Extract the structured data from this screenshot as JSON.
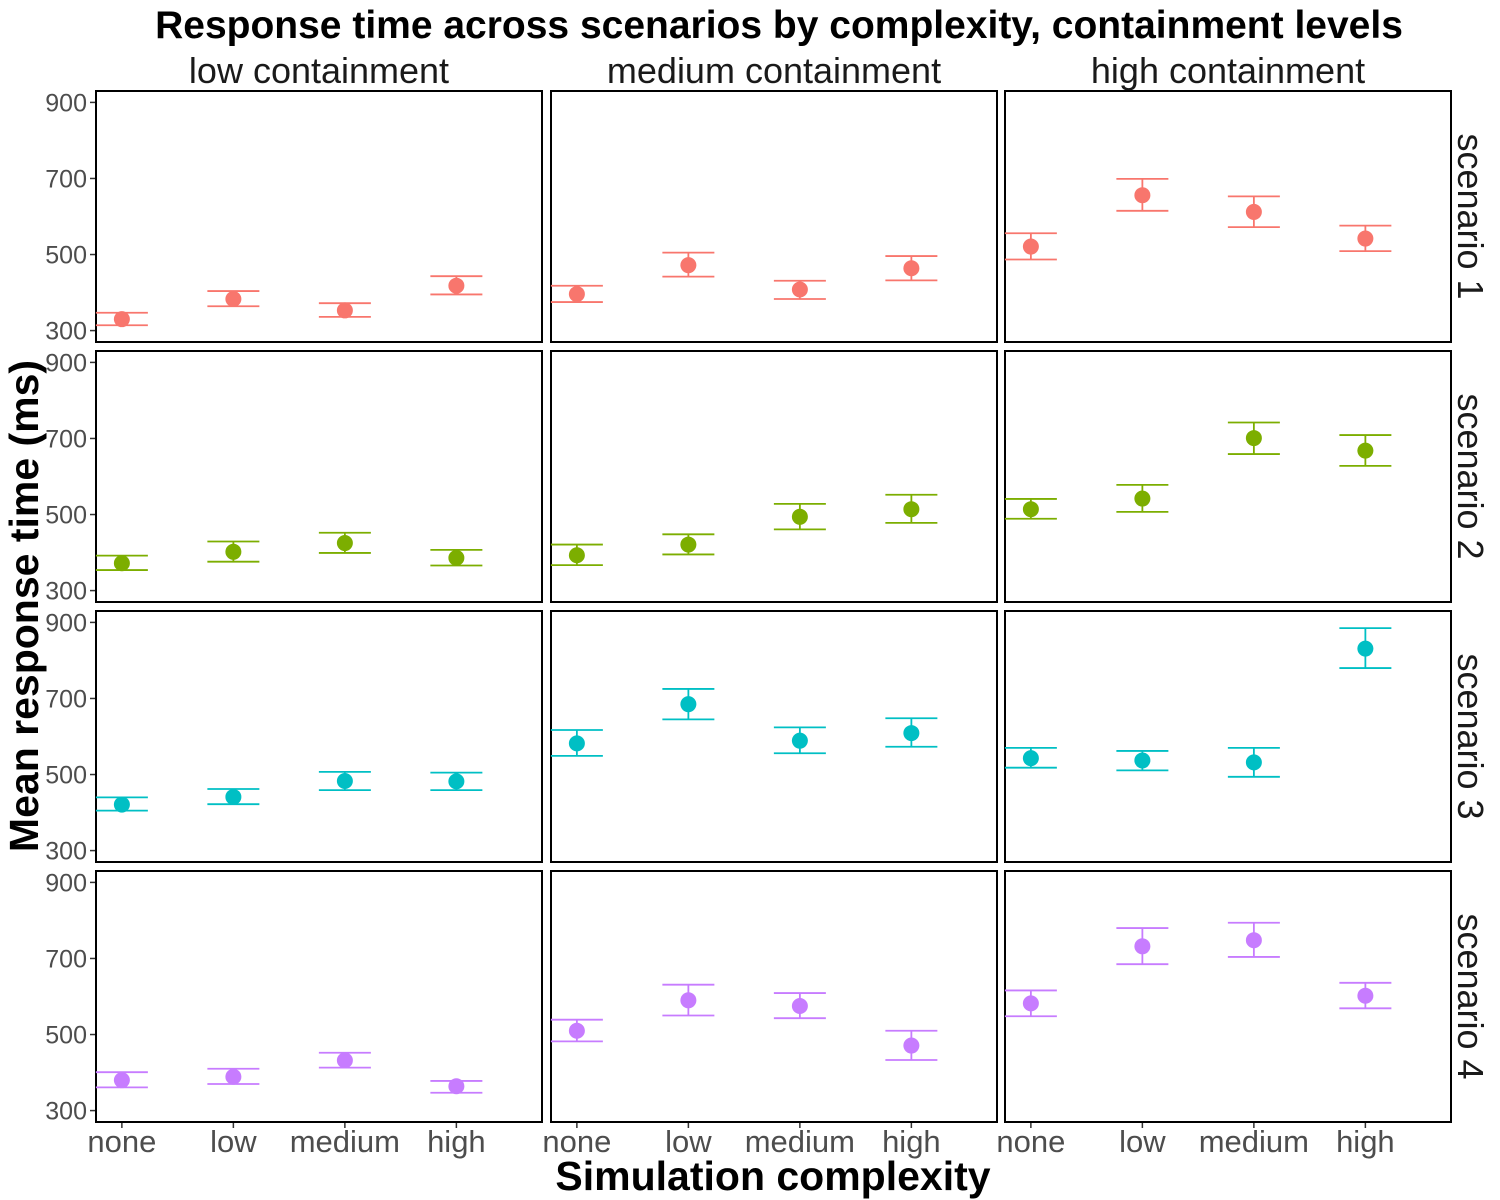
{
  "chart_data": {
    "type": "scatter",
    "title": "Response time across scenarios by complexity, containment levels",
    "xlabel": "Simulation complexity",
    "ylabel": "Mean response time (ms)",
    "categories": [
      "none",
      "low",
      "medium",
      "high"
    ],
    "y_ticks": [
      300,
      500,
      700,
      900
    ],
    "ylim": [
      270,
      930
    ],
    "columns": [
      "low containment",
      "medium containment",
      "high containment"
    ],
    "rows": [
      "scenario 1",
      "scenario 2",
      "scenario 3",
      "scenario 4"
    ],
    "grid": false,
    "legend": "none",
    "series_colors": {
      "scenario 1": "#F8766D",
      "scenario 2": "#7CAE00",
      "scenario 3": "#00BFC4",
      "scenario 4": "#C77CFF"
    },
    "error_bars": "mean with lower/upper interval",
    "panels": [
      {
        "row": "scenario 1",
        "column": "low containment",
        "mean": [
          330,
          383,
          353,
          418
        ],
        "lower": [
          314,
          364,
          336,
          395
        ],
        "upper": [
          347,
          404,
          372,
          443
        ]
      },
      {
        "row": "scenario 1",
        "column": "medium containment",
        "mean": [
          396,
          472,
          408,
          464
        ],
        "lower": [
          375,
          442,
          383,
          432
        ],
        "upper": [
          418,
          505,
          431,
          496
        ]
      },
      {
        "row": "scenario 1",
        "column": "high containment",
        "mean": [
          521,
          656,
          612,
          542
        ],
        "lower": [
          487,
          615,
          572,
          509
        ],
        "upper": [
          556,
          699,
          653,
          576
        ]
      },
      {
        "row": "scenario 2",
        "column": "low containment",
        "mean": [
          372,
          402,
          425,
          386
        ],
        "lower": [
          354,
          376,
          399,
          366
        ],
        "upper": [
          392,
          429,
          452,
          407
        ]
      },
      {
        "row": "scenario 2",
        "column": "medium containment",
        "mean": [
          393,
          421,
          494,
          514
        ],
        "lower": [
          367,
          395,
          461,
          478
        ],
        "upper": [
          421,
          448,
          528,
          552
        ]
      },
      {
        "row": "scenario 2",
        "column": "high containment",
        "mean": [
          514,
          542,
          701,
          668
        ],
        "lower": [
          489,
          507,
          659,
          628
        ],
        "upper": [
          541,
          578,
          742,
          709
        ]
      },
      {
        "row": "scenario 3",
        "column": "low containment",
        "mean": [
          421,
          441,
          483,
          482
        ],
        "lower": [
          405,
          422,
          459,
          459
        ],
        "upper": [
          440,
          462,
          507,
          505
        ]
      },
      {
        "row": "scenario 3",
        "column": "medium containment",
        "mean": [
          582,
          685,
          589,
          609
        ],
        "lower": [
          549,
          645,
          556,
          573
        ],
        "upper": [
          617,
          725,
          624,
          648
        ]
      },
      {
        "row": "scenario 3",
        "column": "high containment",
        "mean": [
          543,
          537,
          532,
          831
        ],
        "lower": [
          518,
          511,
          494,
          780
        ],
        "upper": [
          570,
          562,
          570,
          885
        ]
      },
      {
        "row": "scenario 4",
        "column": "low containment",
        "mean": [
          380,
          389,
          432,
          364
        ],
        "lower": [
          361,
          370,
          413,
          347
        ],
        "upper": [
          401,
          410,
          452,
          378
        ]
      },
      {
        "row": "scenario 4",
        "column": "medium containment",
        "mean": [
          510,
          590,
          575,
          471
        ],
        "lower": [
          482,
          550,
          543,
          433
        ],
        "upper": [
          539,
          631,
          609,
          510
        ]
      },
      {
        "row": "scenario 4",
        "column": "high containment",
        "mean": [
          582,
          732,
          748,
          602
        ],
        "lower": [
          548,
          685,
          704,
          569
        ],
        "upper": [
          616,
          780,
          794,
          636
        ]
      }
    ]
  }
}
